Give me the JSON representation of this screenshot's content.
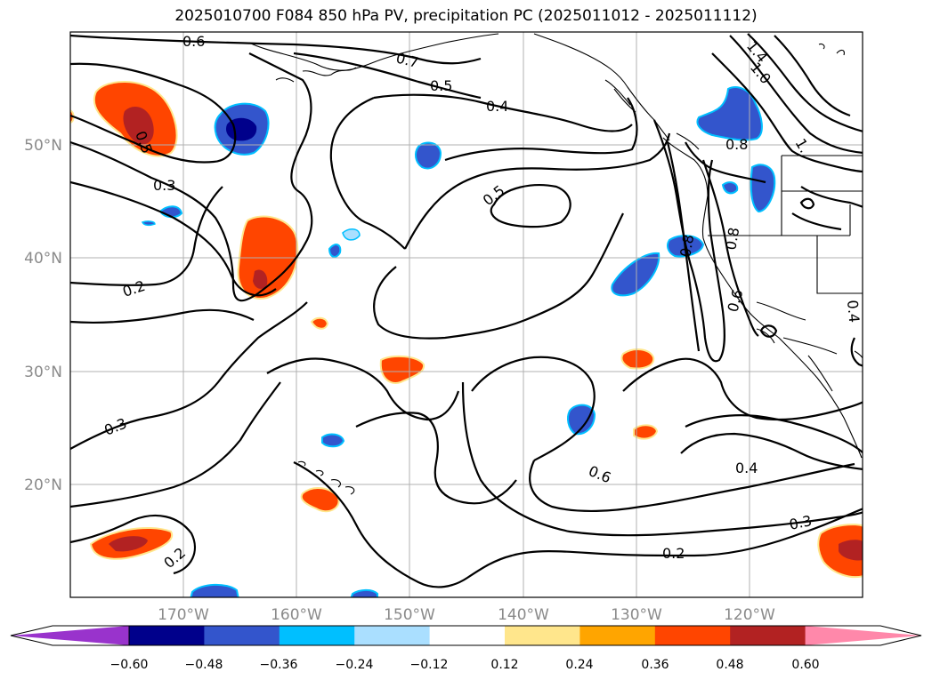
{
  "title": "2025010700 F084 850 hPa PV, precipitation PC (2025011012 - 2025011112)",
  "map": {
    "lat_labels": [
      "50°N",
      "40°N",
      "30°N",
      "20°N"
    ],
    "lon_labels": [
      "170°W",
      "160°W",
      "150°W",
      "140°W",
      "130°W",
      "120°W"
    ],
    "contour_labels": [
      "0.6",
      "0.7",
      "0.5",
      "0.4",
      "1.4",
      "1.0",
      "1.",
      "0.5",
      "0.3",
      "0.5",
      "0.8",
      "0.8",
      "0.8",
      "0.2",
      "0.6",
      "0.4",
      "0.3",
      "0.6",
      "0.4",
      "0.2",
      "0.3",
      "0.2"
    ]
  },
  "colorbar": {
    "ticks": [
      "−0.60",
      "−0.48",
      "−0.36",
      "−0.24",
      "−0.12",
      "0.12",
      "0.24",
      "0.36",
      "0.48",
      "0.60"
    ],
    "colors": [
      "#9933cc",
      "#00008b",
      "#3355cc",
      "#00bfff",
      "#aadfff",
      "#ffffff",
      "#ffe68c",
      "#ffa500",
      "#ff4500",
      "#b22222",
      "#ff88aa"
    ]
  }
}
